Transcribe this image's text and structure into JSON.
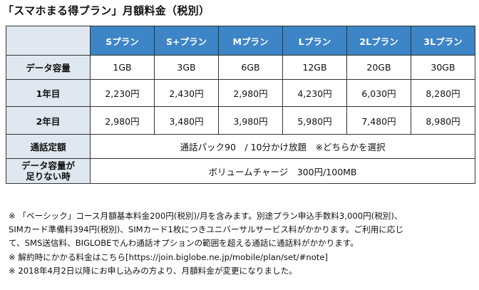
{
  "title": "「スマホまる得プラン」月額料金（税別）",
  "table": {
    "plans": [
      "Sプラン",
      "S+プラン",
      "Mプラン",
      "Lプラン",
      "2Lプラン",
      "3Lプラン"
    ],
    "rows": [
      {
        "label": "データ容量",
        "values": [
          "1GB",
          "3GB",
          "6GB",
          "12GB",
          "20GB",
          "30GB"
        ]
      },
      {
        "label": "1年目",
        "values": [
          "2,230円",
          "2,430円",
          "2,980円",
          "4,230円",
          "6,030円",
          "8,280円"
        ]
      },
      {
        "label": "2年目",
        "values": [
          "2,980円",
          "3,480円",
          "3,980円",
          "5,980円",
          "7,480円",
          "8,980円"
        ]
      }
    ],
    "call_row": {
      "label": "通話定額",
      "value": "通話パック90　/ 10分かけ放題　※どちらかを選択"
    },
    "data_short_row": {
      "label_line1": "データ容量が",
      "label_line2": "足りない時",
      "value": "ボリュームチャージ　300円/100MB"
    }
  },
  "notes": [
    "※ 「ベーシック」コース月額基本料金200円(税別)/月を含みます。別途プラン申込手数料3,000円(税別)、",
    "SIMカード準備料394円(税別)、SIMカード1枚につきユニバーサルサービス料がかかります。ご利用に応じ",
    "て、SMS送信料、BIGLOBEでんわ通話オプションの範囲を超える通話に通話料がかかります。",
    "※ 解約時にかかる料金はこちら[https://join.biglobe.ne.jp/mobile/plan/set/#note]",
    "※ 2018年4月2日以降にお申し込みの方より、月額料金が変更になりました。"
  ]
}
